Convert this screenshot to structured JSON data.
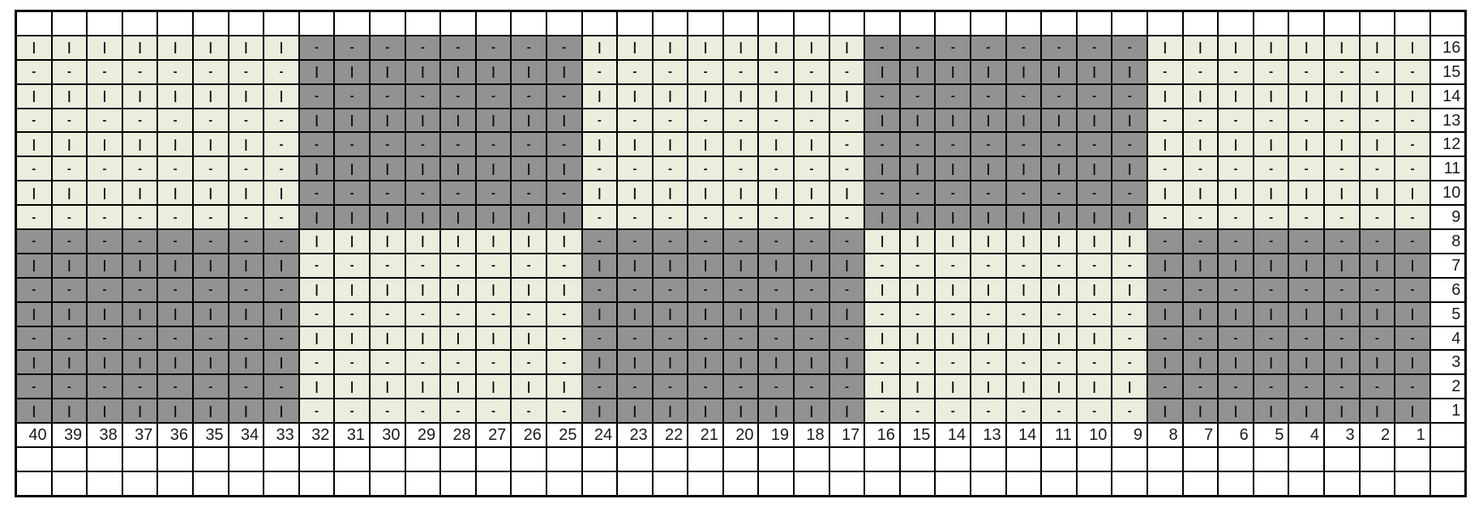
{
  "page": {
    "background": "#ffffff"
  },
  "chart_data": {
    "type": "table",
    "title": "",
    "description": "Knitting stitch chart grid: 40 stitch columns by 16 pattern rows, checkerboard of 8x8 light and gray blocks filled with | and - symbols; blank spreadsheet rows above and below",
    "symbols_used": [
      "|",
      "-"
    ],
    "colors": {
      "light_cell": "#ebeedd",
      "gray_cell": "#929292",
      "grid_line": "#000000",
      "empty_cell": "#ffffff",
      "symbol_text": "#0d0d0d",
      "number_text": "#1a1a1a"
    },
    "layout": {
      "columns_total": 41,
      "rows_total": 20,
      "top_blank_rows": 1,
      "bottom_blank_rows": 2,
      "row_label_side": "right",
      "column_label_row": "below pattern rows"
    },
    "column_labels": [
      "40",
      "39",
      "38",
      "37",
      "36",
      "35",
      "34",
      "33",
      "32",
      "31",
      "30",
      "29",
      "28",
      "27",
      "26",
      "25",
      "24",
      "23",
      "22",
      "21",
      "20",
      "19",
      "18",
      "17",
      "16",
      "15",
      "14",
      "13",
      "14",
      "11",
      "10",
      "9",
      "8",
      "7",
      "6",
      "5",
      "4",
      "3",
      "2",
      "1"
    ],
    "row_labels_top_to_bottom": [
      "16",
      "15",
      "14",
      "13",
      "12",
      "11",
      "10",
      "9",
      "8",
      "7",
      "6",
      "5",
      "4",
      "3",
      "2",
      "1"
    ],
    "grid_rows": [
      {
        "label": "16",
        "symbols": "||||||||--------||||||||--------||||||||",
        "fills": "LLLLLLLLGGGGGGGGLLLLLLLLGGGGGGGGLLLLLLLL"
      },
      {
        "label": "15",
        "symbols": "--------||||||||--------||||||||--------",
        "fills": "LLLLLLLLGGGGGGGGLLLLLLLLGGGGGGGGLLLLLLLL"
      },
      {
        "label": "14",
        "symbols": "||||||||--------||||||||--------||||||||",
        "fills": "LLLLLLLLGGGGGGGGLLLLLLLLGGGGGGGGLLLLLLLL"
      },
      {
        "label": "13",
        "symbols": "--------||||||||--------||||||||--------",
        "fills": "LLLLLLLLGGGGGGGGLLLLLLLLGGGGGGGGLLLLLLLL"
      },
      {
        "label": "12",
        "symbols": "|||||||---------|||||||---------|||||||-",
        "fills": "LLLLLLLLGGGGGGGGLLLLLLLLGGGGGGGGLLLLLLLL"
      },
      {
        "label": "11",
        "symbols": "--------||||||||--------||||||||--------",
        "fills": "LLLLLLLLGGGGGGGGLLLLLLLLGGGGGGGGLLLLLLLL"
      },
      {
        "label": "10",
        "symbols": "||||||||--------||||||||--------||||||||",
        "fills": "LLLLLLLLGGGGGGGGLLLLLLLLGGGGGGGGLLLLLLLL"
      },
      {
        "label": "9",
        "symbols": "--------||||||||--------||||||||--------",
        "fills": "LLLLLLLLGGGGGGGGLLLLLLLLGGGGGGGGLLLLLLLL"
      },
      {
        "label": "8",
        "symbols": "--------||||||||--------||||||||--------",
        "fills": "GGGGGGGGLLLLLLLLGGGGGGGGLLLLLLLLGGGGGGGG"
      },
      {
        "label": "7",
        "symbols": "||||||||--------||||||||--------||||||||",
        "fills": "GGGGGGGGLLLLLLLLGGGGGGGGLLLLLLLLGGGGGGGG"
      },
      {
        "label": "6",
        "symbols": "--------||||||||--------||||||||--------",
        "fills": "GGGGGGGGLLLLLLLLGGGGGGGGLLLLLLLLGGGGGGGG"
      },
      {
        "label": "5",
        "symbols": "||||||||--------||||||||--------||||||||",
        "fills": "GGGGGGGGLLLLLLLLGGGGGGGGLLLLLLLLGGGGGGGG"
      },
      {
        "label": "4",
        "symbols": "--------|||||||---------|||||||---------",
        "fills": "GGGGGGGGLLLLLLLLGGGGGGGGLLLLLLLLGGGGGGGG"
      },
      {
        "label": "3",
        "symbols": "||||||||--------||||||||--------||||||||",
        "fills": "GGGGGGGGLLLLLLLLGGGGGGGGLLLLLLLLGGGGGGGG"
      },
      {
        "label": "2",
        "symbols": "--------||||||||--------||||||||--------",
        "fills": "GGGGGGGGLLLLLLLLGGGGGGGGLLLLLLLLGGGGGGGG"
      },
      {
        "label": "1",
        "symbols": "||||||||--------||||||||--------||||||||",
        "fills": "GGGGGGGGLLLLLLLLGGGGGGGGLLLLLLLLGGGGGGGG"
      }
    ]
  }
}
